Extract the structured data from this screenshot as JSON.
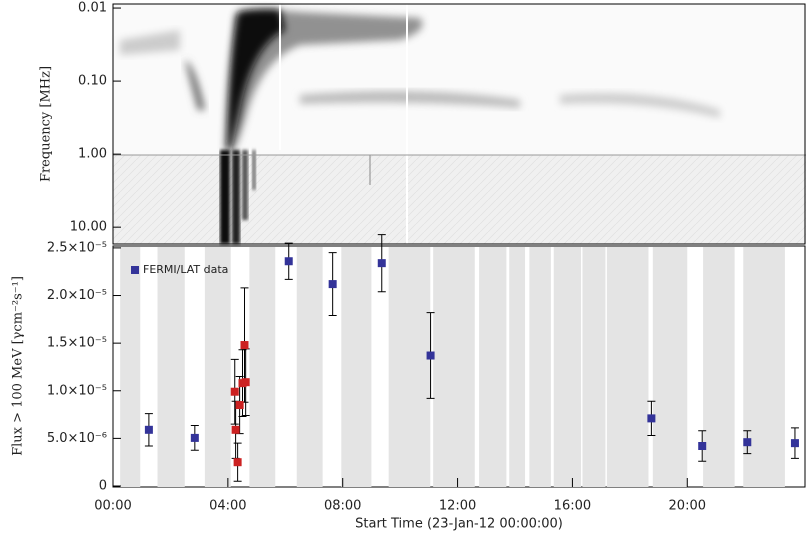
{
  "chart_data": [
    {
      "type": "spectrogram",
      "y_label": "Frequency [MHz]",
      "ylim": [
        0.0088,
        17
      ],
      "y_log": true,
      "y_inverted": true,
      "yticks": [
        0.01,
        {
          "value": 0.1,
          "label": "0.10"
        },
        {
          "value": 1,
          "label": "1.00"
        },
        {
          "value": 10,
          "label": "10.00"
        }
      ]
    },
    {
      "type": "scatter",
      "x_label": "Start Time (23-Jan-12 00:00:00)",
      "y_label": "Flux > 100 MeV  [γcm⁻²s⁻¹]",
      "xlim": [
        0,
        24.1
      ],
      "ylim": [
        0,
        2.52e-05
      ],
      "xticks": [
        {
          "value": 0,
          "label": "00:00"
        },
        {
          "value": 4,
          "label": "04:00"
        },
        {
          "value": 8,
          "label": "08:00"
        },
        {
          "value": 12,
          "label": "12:00"
        },
        {
          "value": 16,
          "label": "16:00"
        },
        {
          "value": 20,
          "label": "20:00"
        }
      ],
      "yticks": [
        0,
        {
          "value": 5e-06,
          "label": "5.0×10⁻⁶"
        },
        {
          "value": 1e-05,
          "label": "1.0×10⁻⁵"
        },
        {
          "value": 1.5e-05,
          "label": "1.5×10⁻⁵"
        },
        {
          "value": 2e-05,
          "label": "2.0×10⁻⁵"
        },
        {
          "value": 2.5e-05,
          "label": "2.5×10⁻⁵"
        }
      ],
      "legend": "top-left",
      "shade_color": "#e4e4e4",
      "shaded_intervals": [
        [
          0.25,
          0.95
        ],
        [
          1.55,
          2.5
        ],
        [
          3.2,
          4.1
        ],
        [
          4.75,
          5.65
        ],
        [
          6.4,
          7.3
        ],
        [
          7.95,
          9.0
        ],
        [
          9.6,
          11.05
        ],
        [
          11.15,
          12.6
        ],
        [
          12.75,
          13.7
        ],
        [
          13.8,
          14.35
        ],
        [
          14.5,
          15.25
        ],
        [
          15.35,
          16.3
        ],
        [
          16.35,
          17.15
        ],
        [
          17.2,
          18.65
        ],
        [
          18.8,
          20.0
        ],
        [
          20.55,
          21.65
        ],
        [
          21.95,
          23.4
        ]
      ],
      "series": [
        {
          "name": "FERMI/LAT data",
          "color": "#333399",
          "x": [
            1.25,
            2.85,
            6.12,
            7.65,
            9.36,
            11.06,
            18.75,
            20.52,
            22.09,
            23.75
          ],
          "values": [
            5.9e-06,
            5.05e-06,
            2.36e-05,
            2.12e-05,
            2.34e-05,
            1.37e-05,
            7.1e-06,
            4.2e-06,
            4.6e-06,
            4.5e-06
          ],
          "errors": [
            1.7e-06,
            1.3e-06,
            1.9e-06,
            3.3e-06,
            3e-06,
            4.5e-06,
            1.8e-06,
            1.6e-06,
            1.2e-06,
            1.6e-06
          ]
        },
        {
          "color": "#cc2222",
          "x": [
            4.24,
            4.27,
            4.34,
            4.41,
            4.51,
            4.58,
            4.62
          ],
          "values": [
            9.9e-06,
            5.9e-06,
            2.5e-06,
            8.5e-06,
            1.08e-05,
            1.48e-05,
            1.09e-05
          ],
          "errors": [
            3.4e-06,
            3e-06,
            2e-06,
            3e-06,
            3.5e-06,
            6e-06,
            3.5e-06
          ]
        }
      ]
    }
  ]
}
